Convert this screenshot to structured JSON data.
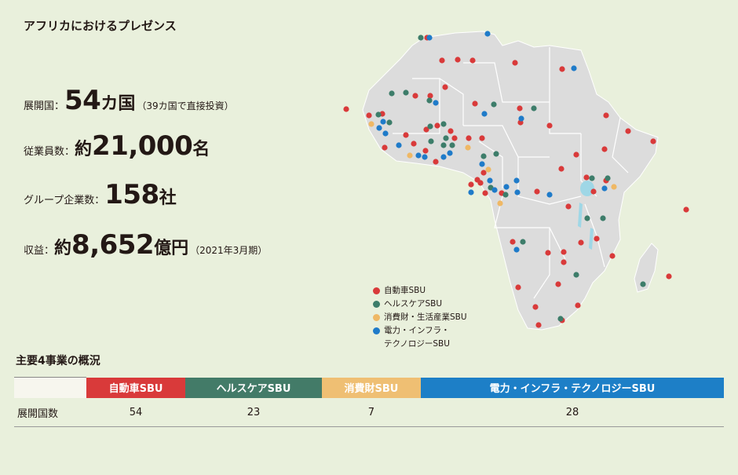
{
  "title": "アフリカにおけるプレゼンス",
  "stats": {
    "countries": {
      "label": "展開国：",
      "number": "54",
      "unit": "カ国",
      "note": "（39カ国で直接投資）"
    },
    "employees": {
      "label": "従業員数：",
      "prefix": "約",
      "number": "21,000",
      "unit": "名"
    },
    "companies": {
      "label": "グループ企業数：",
      "number": "158",
      "unit": "社"
    },
    "revenue": {
      "label": "収益：",
      "prefix": "約",
      "number": "8,652",
      "unit": "億円",
      "note": "（2021年3月期）"
    }
  },
  "legend": {
    "automotive": {
      "label": "自動車SBU",
      "color": "#d93a3a"
    },
    "healthcare": {
      "label": "ヘルスケアSBU",
      "color": "#3d7d6a"
    },
    "consumer": {
      "label": "消費財・生活産業SBU",
      "color": "#efb865"
    },
    "power": {
      "label": "電力・インフラ・",
      "label2": "テクノロジーSBU",
      "color": "#1f7bc9"
    }
  },
  "business_overview": {
    "title": "主要4事業の概況",
    "row_label": "展開国数",
    "columns": [
      {
        "name": "自動車SBU",
        "color": "#d93a3a",
        "value": "54"
      },
      {
        "name": "ヘルスケアSBU",
        "color": "#437b68",
        "value": "23"
      },
      {
        "name": "消費財SBU",
        "color": "#efbf73",
        "value": "7"
      },
      {
        "name": "電力・インフラ・テクノロジーSBU",
        "color": "#1d7fc7",
        "value": "28"
      }
    ]
  },
  "map": {
    "land_color": "#dcdcdc",
    "border_color": "#ffffff",
    "water_color": "#9fd7e6"
  }
}
